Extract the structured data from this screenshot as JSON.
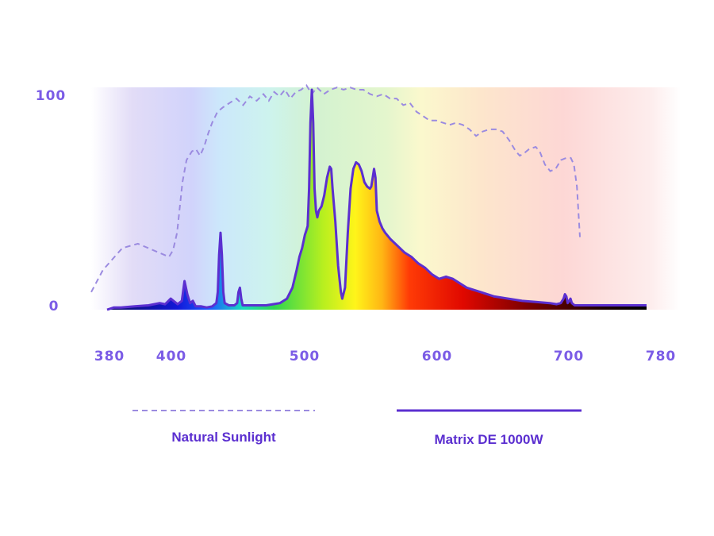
{
  "chart_data": {
    "type": "area",
    "title": "",
    "xlabel": "",
    "ylabel": "",
    "xlim": [
      380,
      780
    ],
    "ylim": [
      0,
      100
    ],
    "grid": false,
    "legend_position": "bottom",
    "background": "visible-spectrum-gradient",
    "y_ticks": [
      {
        "value": 100,
        "label": "100"
      },
      {
        "value": 0,
        "label": "0"
      }
    ],
    "x_ticks": [
      {
        "value": 380,
        "label": "380"
      },
      {
        "value": 400,
        "label": "400"
      },
      {
        "value": 500,
        "label": "500"
      },
      {
        "value": 600,
        "label": "600"
      },
      {
        "value": 700,
        "label": "700"
      },
      {
        "value": 780,
        "label": "780"
      }
    ],
    "series": [
      {
        "name": "Natural Sunlight",
        "style": "dashed-line",
        "color": "#9b8be0",
        "points": [
          [
            380,
            8
          ],
          [
            383,
            18
          ],
          [
            388,
            28
          ],
          [
            392,
            30
          ],
          [
            396,
            27
          ],
          [
            400,
            24
          ],
          [
            403,
            27
          ],
          [
            406,
            35
          ],
          [
            410,
            58
          ],
          [
            413,
            68
          ],
          [
            417,
            72
          ],
          [
            420,
            73
          ],
          [
            423,
            70
          ],
          [
            426,
            74
          ],
          [
            429,
            80
          ],
          [
            432,
            85
          ],
          [
            436,
            90
          ],
          [
            440,
            92
          ],
          [
            445,
            94
          ],
          [
            450,
            96
          ],
          [
            455,
            93
          ],
          [
            460,
            97
          ],
          [
            465,
            95
          ],
          [
            470,
            98
          ],
          [
            474,
            95
          ],
          [
            478,
            99
          ],
          [
            482,
            97
          ],
          [
            486,
            100
          ],
          [
            490,
            96
          ],
          [
            494,
            99
          ],
          [
            498,
            100
          ],
          [
            502,
            102
          ],
          [
            506,
            98
          ],
          [
            510,
            101
          ],
          [
            515,
            98
          ],
          [
            520,
            100
          ],
          [
            525,
            101
          ],
          [
            530,
            100
          ],
          [
            535,
            101
          ],
          [
            540,
            100
          ],
          [
            545,
            100
          ],
          [
            550,
            98
          ],
          [
            555,
            97
          ],
          [
            560,
            98
          ],
          [
            565,
            96
          ],
          [
            570,
            96
          ],
          [
            575,
            93
          ],
          [
            580,
            94
          ],
          [
            585,
            90
          ],
          [
            590,
            88
          ],
          [
            595,
            86
          ],
          [
            600,
            86
          ],
          [
            605,
            85
          ],
          [
            610,
            84
          ],
          [
            615,
            85
          ],
          [
            620,
            84
          ],
          [
            625,
            82
          ],
          [
            630,
            79
          ],
          [
            635,
            81
          ],
          [
            640,
            82
          ],
          [
            645,
            82
          ],
          [
            650,
            81
          ],
          [
            655,
            77
          ],
          [
            660,
            72
          ],
          [
            663,
            70
          ],
          [
            666,
            71
          ],
          [
            670,
            73
          ],
          [
            675,
            74
          ],
          [
            678,
            72
          ],
          [
            682,
            66
          ],
          [
            686,
            63
          ],
          [
            690,
            64
          ],
          [
            694,
            68
          ],
          [
            698,
            69
          ],
          [
            702,
            69
          ],
          [
            705,
            66
          ],
          [
            708,
            56
          ],
          [
            711,
            33
          ]
        ]
      },
      {
        "name": "Matrix DE 1000W",
        "style": "solid-filled",
        "color": "#5b2fd0",
        "points": [
          [
            390,
            0
          ],
          [
            395,
            1
          ],
          [
            400,
            1
          ],
          [
            410,
            1.5
          ],
          [
            420,
            2
          ],
          [
            428,
            3
          ],
          [
            432,
            2.5
          ],
          [
            436,
            5
          ],
          [
            438,
            4
          ],
          [
            441,
            2.5
          ],
          [
            444,
            4
          ],
          [
            446,
            13
          ],
          [
            448,
            7
          ],
          [
            450,
            3
          ],
          [
            452,
            4
          ],
          [
            454,
            1.5
          ],
          [
            458,
            1.5
          ],
          [
            462,
            1
          ],
          [
            466,
            1.5
          ],
          [
            469,
            3
          ],
          [
            470,
            8
          ],
          [
            471,
            25
          ],
          [
            472,
            35
          ],
          [
            473,
            25
          ],
          [
            474,
            8
          ],
          [
            475,
            3
          ],
          [
            478,
            2
          ],
          [
            482,
            2
          ],
          [
            484,
            3
          ],
          [
            485,
            8
          ],
          [
            486,
            10
          ],
          [
            487,
            5
          ],
          [
            488,
            2
          ],
          [
            492,
            2
          ],
          [
            496,
            2
          ],
          [
            500,
            2
          ],
          [
            505,
            2
          ],
          [
            510,
            2.5
          ],
          [
            515,
            3
          ],
          [
            520,
            5
          ],
          [
            524,
            10
          ],
          [
            527,
            18
          ],
          [
            529,
            24
          ],
          [
            531,
            28
          ],
          [
            533,
            34
          ],
          [
            534,
            36
          ],
          [
            535,
            38
          ],
          [
            536,
            55
          ],
          [
            537,
            85
          ],
          [
            538,
            100
          ],
          [
            539,
            85
          ],
          [
            540,
            55
          ],
          [
            541,
            45
          ],
          [
            542,
            42
          ],
          [
            543,
            45
          ],
          [
            545,
            47
          ],
          [
            547,
            52
          ],
          [
            549,
            60
          ],
          [
            551,
            65
          ],
          [
            552,
            64
          ],
          [
            553,
            55
          ],
          [
            555,
            40
          ],
          [
            557,
            20
          ],
          [
            559,
            8
          ],
          [
            560,
            5
          ],
          [
            562,
            10
          ],
          [
            564,
            35
          ],
          [
            566,
            55
          ],
          [
            568,
            64
          ],
          [
            570,
            67
          ],
          [
            572,
            66
          ],
          [
            574,
            63
          ],
          [
            576,
            58
          ],
          [
            578,
            56
          ],
          [
            580,
            55
          ],
          [
            581,
            56
          ],
          [
            582,
            60
          ],
          [
            583,
            64
          ],
          [
            584,
            60
          ],
          [
            585,
            45
          ],
          [
            587,
            40
          ],
          [
            589,
            37
          ],
          [
            591,
            35
          ],
          [
            595,
            32
          ],
          [
            600,
            29
          ],
          [
            605,
            26
          ],
          [
            610,
            24
          ],
          [
            615,
            21
          ],
          [
            620,
            19
          ],
          [
            625,
            16
          ],
          [
            630,
            14
          ],
          [
            635,
            15
          ],
          [
            640,
            14
          ],
          [
            645,
            12
          ],
          [
            650,
            10
          ],
          [
            660,
            8
          ],
          [
            670,
            6
          ],
          [
            680,
            5
          ],
          [
            690,
            4
          ],
          [
            700,
            3.5
          ],
          [
            710,
            3
          ],
          [
            715,
            2.5
          ],
          [
            718,
            3
          ],
          [
            720,
            5
          ],
          [
            721,
            7
          ],
          [
            722,
            6
          ],
          [
            723,
            3
          ],
          [
            724,
            4
          ],
          [
            725,
            5
          ],
          [
            726,
            3
          ],
          [
            728,
            2
          ],
          [
            730,
            2
          ],
          [
            735,
            2
          ],
          [
            740,
            2
          ],
          [
            745,
            2
          ],
          [
            750,
            2
          ],
          [
            755,
            2
          ],
          [
            760,
            2
          ],
          [
            765,
            2
          ],
          [
            770,
            2
          ],
          [
            775,
            2
          ],
          [
            780,
            2
          ]
        ]
      }
    ]
  }
}
